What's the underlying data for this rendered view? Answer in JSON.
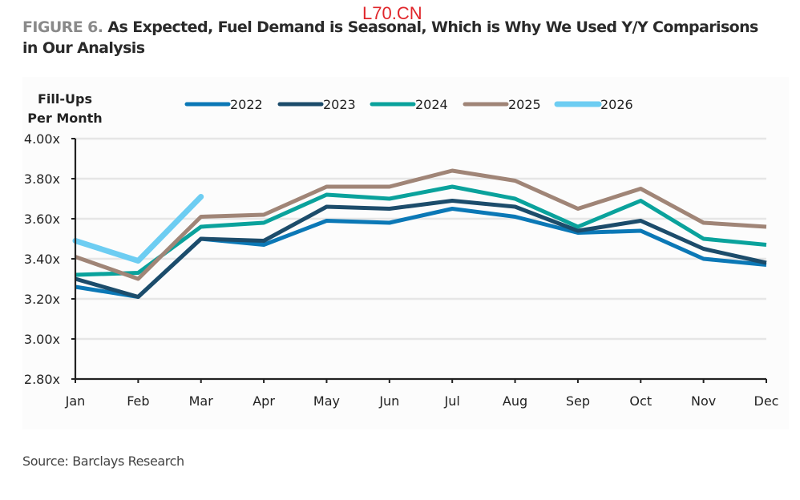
{
  "watermark": "L70.CN",
  "figure": {
    "label": "FIGURE 6.",
    "title": "As Expected, Fuel Demand is Seasonal, Which is Why We Used Y/Y Comparisons in Our Analysis",
    "source": "Source: Barclays Research"
  },
  "chart_data": {
    "type": "line",
    "title": "As Expected, Fuel Demand is Seasonal, Which is Why We Used Y/Y Comparisons in Our Analysis",
    "ylabel": "Fill-Ups Per Month",
    "ylabel_lines": [
      "Fill-Ups",
      "Per Month"
    ],
    "xlabel": "",
    "categories": [
      "Jan",
      "Feb",
      "Mar",
      "Apr",
      "May",
      "Jun",
      "Jul",
      "Aug",
      "Sep",
      "Oct",
      "Nov",
      "Dec"
    ],
    "ylim": [
      2.8,
      4.0
    ],
    "yticks": [
      2.8,
      3.0,
      3.2,
      3.4,
      3.6,
      3.8,
      4.0
    ],
    "ytick_labels": [
      "2.80x",
      "3.00x",
      "3.20x",
      "3.40x",
      "3.60x",
      "3.80x",
      "4.00x"
    ],
    "grid": true,
    "legend_position": "top",
    "series": [
      {
        "name": "2022",
        "color": "#0b78b6",
        "values": [
          3.26,
          3.21,
          3.5,
          3.47,
          3.59,
          3.58,
          3.65,
          3.61,
          3.53,
          3.54,
          3.4,
          3.37
        ]
      },
      {
        "name": "2023",
        "color": "#1c4c6b",
        "values": [
          3.3,
          3.21,
          3.5,
          3.49,
          3.66,
          3.65,
          3.69,
          3.66,
          3.54,
          3.59,
          3.45,
          3.38
        ]
      },
      {
        "name": "2024",
        "color": "#0aa29c",
        "values": [
          3.32,
          3.33,
          3.56,
          3.58,
          3.72,
          3.7,
          3.76,
          3.7,
          3.56,
          3.69,
          3.5,
          3.47
        ]
      },
      {
        "name": "2025",
        "color": "#a08577",
        "values": [
          3.41,
          3.3,
          3.61,
          3.62,
          3.76,
          3.76,
          3.84,
          3.79,
          3.65,
          3.75,
          3.58,
          3.56
        ]
      },
      {
        "name": "2026",
        "color": "#6dcdf2",
        "values": [
          3.49,
          3.39,
          3.71,
          null,
          null,
          null,
          null,
          null,
          null,
          null,
          null,
          null
        ]
      }
    ]
  }
}
